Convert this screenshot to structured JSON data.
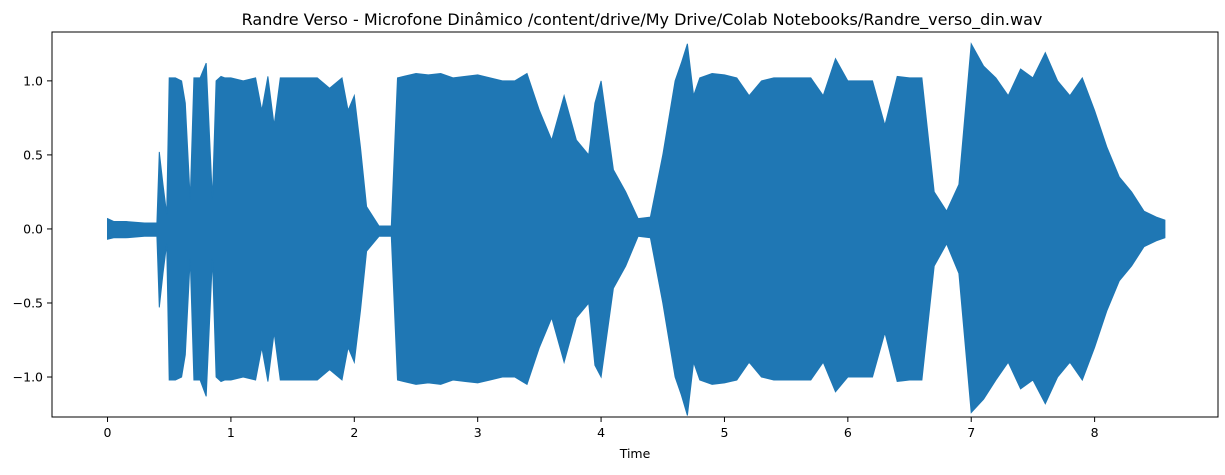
{
  "chart_data": {
    "type": "area",
    "title": "Randre Verso - Microfone Dinâmico /content/drive/My Drive/Colab Notebooks/Randre_verso_din.wav",
    "xlabel": "Time",
    "ylabel": "",
    "xlim": [
      -0.45,
      9.0
    ],
    "ylim": [
      -1.27,
      1.33
    ],
    "x_ticks": [
      0,
      1,
      2,
      3,
      4,
      5,
      6,
      7,
      8
    ],
    "y_ticks": [
      -1.0,
      -0.5,
      0.0,
      0.5,
      1.0
    ],
    "y_tick_labels": [
      "−1.0",
      "−0.5",
      "0.0",
      "0.5",
      "1.0"
    ],
    "grid": false,
    "color": "#1f77b4",
    "series": [
      {
        "x": [
          0.0,
          0.05,
          0.15,
          0.3,
          0.4,
          0.42,
          0.45,
          0.48,
          0.5,
          0.55,
          0.6,
          0.63,
          0.67,
          0.7,
          0.75,
          0.8,
          0.85,
          0.88,
          0.92,
          0.95,
          1.0,
          1.1,
          1.2,
          1.25,
          1.3,
          1.35,
          1.4,
          1.45,
          1.5,
          1.55,
          1.6,
          1.7,
          1.8,
          1.9,
          1.95,
          2.0,
          2.05,
          2.1,
          2.2,
          2.3,
          2.35,
          2.4,
          2.5,
          2.6,
          2.7,
          2.8,
          2.9,
          3.0,
          3.1,
          3.2,
          3.3,
          3.4,
          3.5,
          3.6,
          3.7,
          3.8,
          3.9,
          3.95,
          4.0,
          4.1,
          4.2,
          4.3,
          4.4,
          4.5,
          4.6,
          4.65,
          4.7,
          4.75,
          4.8,
          4.9,
          5.0,
          5.1,
          5.2,
          5.3,
          5.4,
          5.5,
          5.6,
          5.7,
          5.8,
          5.9,
          6.0,
          6.1,
          6.2,
          6.3,
          6.4,
          6.5,
          6.6,
          6.7,
          6.8,
          6.9,
          7.0,
          7.1,
          7.2,
          7.3,
          7.4,
          7.5,
          7.6,
          7.7,
          7.8,
          7.9,
          8.0,
          8.1,
          8.2,
          8.3,
          8.4,
          8.5,
          8.57
        ],
        "upper": [
          0.07,
          0.05,
          0.05,
          0.04,
          0.04,
          0.52,
          0.3,
          0.1,
          1.02,
          1.02,
          1.0,
          0.85,
          0.2,
          1.02,
          1.02,
          1.12,
          0.2,
          1.0,
          1.03,
          1.02,
          1.02,
          1.0,
          1.02,
          0.8,
          1.03,
          0.7,
          1.02,
          1.02,
          1.02,
          1.02,
          1.02,
          1.02,
          0.95,
          1.02,
          0.8,
          0.9,
          0.55,
          0.15,
          0.02,
          0.02,
          1.02,
          1.03,
          1.05,
          1.04,
          1.05,
          1.02,
          1.03,
          1.04,
          1.02,
          1.0,
          1.0,
          1.05,
          0.8,
          0.6,
          0.9,
          0.6,
          0.5,
          0.85,
          1.0,
          0.4,
          0.25,
          0.07,
          0.08,
          0.5,
          1.0,
          1.12,
          1.25,
          0.9,
          1.02,
          1.05,
          1.04,
          1.02,
          0.9,
          1.0,
          1.02,
          1.02,
          1.02,
          1.02,
          0.9,
          1.15,
          1.0,
          1.0,
          1.0,
          0.7,
          1.03,
          1.02,
          1.02,
          0.25,
          0.12,
          0.3,
          1.25,
          1.1,
          1.02,
          0.9,
          1.08,
          1.02,
          1.19,
          1.0,
          0.9,
          1.02,
          0.8,
          0.55,
          0.35,
          0.25,
          0.12,
          0.08,
          0.06
        ],
        "lower": [
          -0.07,
          -0.06,
          -0.06,
          -0.05,
          -0.05,
          -0.53,
          -0.3,
          -0.1,
          -1.02,
          -1.02,
          -1.0,
          -0.85,
          -0.2,
          -1.02,
          -1.02,
          -1.13,
          -0.2,
          -1.0,
          -1.03,
          -1.02,
          -1.02,
          -1.0,
          -1.02,
          -0.8,
          -1.03,
          -0.7,
          -1.02,
          -1.02,
          -1.02,
          -1.02,
          -1.02,
          -1.02,
          -0.95,
          -1.02,
          -0.8,
          -0.9,
          -0.55,
          -0.15,
          -0.05,
          -0.05,
          -1.02,
          -1.03,
          -1.05,
          -1.04,
          -1.05,
          -1.02,
          -1.03,
          -1.04,
          -1.02,
          -1.0,
          -1.0,
          -1.05,
          -0.8,
          -0.6,
          -0.9,
          -0.6,
          -0.5,
          -0.92,
          -1.0,
          -0.4,
          -0.25,
          -0.05,
          -0.06,
          -0.5,
          -1.0,
          -1.12,
          -1.26,
          -0.9,
          -1.02,
          -1.05,
          -1.04,
          -1.02,
          -0.9,
          -1.0,
          -1.02,
          -1.02,
          -1.02,
          -1.02,
          -0.9,
          -1.1,
          -1.0,
          -1.0,
          -1.0,
          -0.7,
          -1.03,
          -1.02,
          -1.02,
          -0.25,
          -0.1,
          -0.3,
          -1.24,
          -1.15,
          -1.02,
          -0.9,
          -1.08,
          -1.02,
          -1.18,
          -1.0,
          -0.9,
          -1.02,
          -0.8,
          -0.55,
          -0.35,
          -0.25,
          -0.12,
          -0.08,
          -0.06
        ]
      }
    ]
  }
}
